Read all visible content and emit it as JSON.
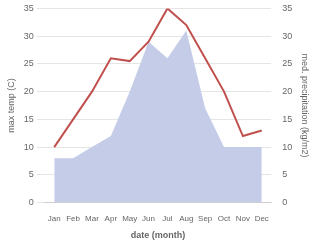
{
  "chart_data": {
    "type": "line",
    "xlabel": "date (month)",
    "ylabel": "max temp (C)",
    "y2label": "med. precipitation (kg/m2)",
    "categories": [
      "Jan",
      "Feb",
      "Mar",
      "Apr",
      "May",
      "Jun",
      "Jul",
      "Aug",
      "Sep",
      "Oct",
      "Nov",
      "Dec"
    ],
    "series": [
      {
        "type": "line",
        "color": "#c0504d",
        "values": [
          10,
          15,
          20,
          26,
          25.5,
          29,
          35,
          32,
          26,
          20,
          12,
          13
        ]
      },
      {
        "type": "area",
        "color": "#c5cce8",
        "axis": "y2",
        "values": [
          8,
          8,
          10,
          12,
          20,
          29,
          26,
          31,
          17,
          10,
          10,
          10
        ]
      }
    ],
    "ylim": [
      0,
      35
    ],
    "yticks": [
      0,
      5,
      10,
      15,
      20,
      25,
      30,
      35
    ],
    "y2lim": [
      0,
      35
    ],
    "y2ticks": [
      0,
      5,
      10,
      15,
      20,
      25,
      30,
      35
    ],
    "grid": true
  }
}
